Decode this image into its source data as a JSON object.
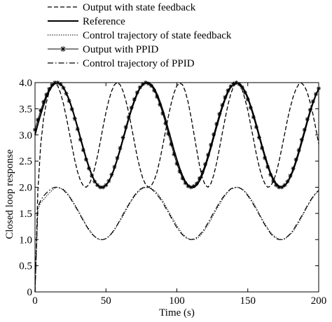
{
  "chart_data": {
    "type": "line",
    "xlabel": "Time (s)",
    "ylabel": "Closed loop response",
    "xlim": [
      0,
      200
    ],
    "ylim": [
      0,
      4.0
    ],
    "x_ticks": [
      "0",
      "50",
      "100",
      "150",
      "200"
    ],
    "y_ticks": [
      "0",
      "0.5",
      "1.0",
      "1.5",
      "2.0",
      "2.5",
      "3.0",
      "3.5",
      "4.0"
    ],
    "x_tick_values": [
      0,
      50,
      100,
      150,
      200
    ],
    "y_tick_values": [
      0,
      0.5,
      1.0,
      1.5,
      2.0,
      2.5,
      3.0,
      3.5,
      4.0
    ],
    "grid": false,
    "legend_position": "top-center",
    "x": [
      0,
      2,
      4,
      6,
      8,
      10,
      12,
      14,
      16,
      18,
      20,
      22,
      24,
      26,
      28,
      30,
      32,
      34,
      36,
      38,
      40,
      42,
      44,
      46,
      48,
      50,
      52,
      54,
      56,
      58,
      60,
      62,
      64,
      66,
      68,
      70,
      72,
      74,
      76,
      78,
      80,
      82,
      84,
      86,
      88,
      90,
      92,
      94,
      96,
      98,
      100,
      102,
      104,
      106,
      108,
      110,
      112,
      114,
      116,
      118,
      120,
      122,
      124,
      126,
      128,
      130,
      132,
      134,
      136,
      138,
      140,
      142,
      144,
      146,
      148,
      150,
      152,
      154,
      156,
      158,
      160,
      162,
      164,
      166,
      168,
      170,
      172,
      174,
      176,
      178,
      180,
      182,
      184,
      186,
      188,
      190,
      192,
      194,
      196,
      198,
      200
    ],
    "series": [
      {
        "name": "Output with state feedback",
        "style": "dashed",
        "values": [
          0,
          1.92,
          2.81,
          3.3,
          3.62,
          3.83,
          3.96,
          3.99,
          3.94,
          3.8,
          3.6,
          3.35,
          3.07,
          2.79,
          2.52,
          2.29,
          2.13,
          2.03,
          2.0,
          2.05,
          2.17,
          2.36,
          2.59,
          2.87,
          3.16,
          3.43,
          3.66,
          3.84,
          3.96,
          4.0,
          3.96,
          3.84,
          3.66,
          3.43,
          3.16,
          2.87,
          2.59,
          2.36,
          2.17,
          2.05,
          2.0,
          2.03,
          2.13,
          2.29,
          2.52,
          2.79,
          3.07,
          3.35,
          3.6,
          3.8,
          3.94,
          3.99,
          3.96,
          3.83,
          3.62,
          3.34,
          3.03,
          2.71,
          2.41,
          2.18,
          2.04,
          2.0,
          2.07,
          2.23,
          2.46,
          2.74,
          3.03,
          3.31,
          3.57,
          3.78,
          3.93,
          3.99,
          3.97,
          3.87,
          3.69,
          3.47,
          3.2,
          2.92,
          2.64,
          2.4,
          2.2,
          2.07,
          2.0,
          2.02,
          2.11,
          2.27,
          2.49,
          2.75,
          3.02,
          3.29,
          3.53,
          3.73,
          3.88,
          3.97,
          3.99,
          3.93,
          3.81,
          3.62,
          3.39,
          3.12,
          2.83
        ]
      },
      {
        "name": "Reference",
        "style": "solid",
        "values": [
          3.0,
          3.2,
          3.39,
          3.56,
          3.72,
          3.84,
          3.93,
          3.98,
          4.0,
          3.97,
          3.91,
          3.81,
          3.68,
          3.52,
          3.34,
          3.15,
          2.95,
          2.75,
          2.56,
          2.39,
          2.24,
          2.12,
          2.04,
          2.0,
          2.0,
          2.04,
          2.11,
          2.22,
          2.36,
          2.53,
          2.71,
          2.91,
          3.1,
          3.3,
          3.48,
          3.64,
          3.78,
          3.89,
          3.96,
          4.0,
          4.0,
          3.96,
          3.89,
          3.78,
          3.64,
          3.48,
          3.3,
          3.1,
          2.91,
          2.71,
          2.53,
          2.36,
          2.22,
          2.11,
          2.04,
          2.0,
          2.0,
          2.04,
          2.12,
          2.24,
          2.39,
          2.56,
          2.75,
          2.95,
          3.15,
          3.34,
          3.52,
          3.68,
          3.81,
          3.91,
          3.97,
          4.0,
          3.98,
          3.93,
          3.84,
          3.72,
          3.56,
          3.39,
          3.2,
          3.0,
          2.8,
          2.61,
          2.44,
          2.28,
          2.16,
          2.07,
          2.02,
          2.0,
          2.03,
          2.09,
          2.19,
          2.32,
          2.48,
          2.66,
          2.85,
          3.05,
          3.25,
          3.44,
          3.61,
          3.76,
          3.88
        ]
      },
      {
        "name": "Control trajectory of state feedback",
        "style": "dotted",
        "values": [
          0.0,
          1.57,
          1.71,
          1.76,
          1.83,
          1.89,
          1.94,
          1.98,
          2.0,
          1.98,
          1.96,
          1.91,
          1.84,
          1.76,
          1.67,
          1.58,
          1.48,
          1.38,
          1.28,
          1.2,
          1.12,
          1.06,
          1.02,
          1.0,
          1.0,
          1.02,
          1.06,
          1.11,
          1.18,
          1.27,
          1.36,
          1.45,
          1.55,
          1.65,
          1.74,
          1.82,
          1.89,
          1.94,
          1.98,
          2.0,
          2.0,
          1.98,
          1.94,
          1.89,
          1.82,
          1.74,
          1.65,
          1.55,
          1.45,
          1.36,
          1.27,
          1.18,
          1.11,
          1.06,
          1.02,
          1.0,
          1.0,
          1.02,
          1.06,
          1.12,
          1.2,
          1.28,
          1.38,
          1.48,
          1.58,
          1.67,
          1.76,
          1.84,
          1.91,
          1.96,
          1.98,
          2.0,
          1.99,
          1.97,
          1.92,
          1.86,
          1.78,
          1.7,
          1.6,
          1.5,
          1.4,
          1.3,
          1.22,
          1.14,
          1.08,
          1.04,
          1.01,
          1.0,
          1.01,
          1.05,
          1.1,
          1.16,
          1.24,
          1.33,
          1.43,
          1.53,
          1.63,
          1.72,
          1.81,
          1.88,
          1.94
        ]
      },
      {
        "name": "Output with PPID",
        "style": "solid-star",
        "values": [
          3.1,
          3.29,
          3.47,
          3.63,
          3.77,
          3.88,
          3.96,
          4.0,
          4.0,
          3.97,
          3.9,
          3.79,
          3.65,
          3.49,
          3.31,
          3.11,
          2.91,
          2.71,
          2.53,
          2.36,
          2.22,
          2.11,
          2.04,
          2.0,
          2.0,
          2.04,
          2.12,
          2.24,
          2.39,
          2.56,
          2.75,
          2.95,
          3.15,
          3.34,
          3.52,
          3.68,
          3.81,
          3.91,
          3.97,
          4.0,
          3.98,
          3.94,
          3.85,
          3.73,
          3.58,
          3.41,
          3.22,
          3.02,
          2.82,
          2.63,
          2.45,
          2.3,
          2.17,
          2.08,
          2.02,
          2.0,
          2.02,
          2.07,
          2.17,
          2.29,
          2.44,
          2.62,
          2.81,
          3.01,
          3.21,
          3.4,
          3.57,
          3.72,
          3.85,
          3.93,
          3.98,
          4.0,
          3.97,
          3.91,
          3.81,
          3.68,
          3.52,
          3.34,
          3.15,
          2.95,
          2.75,
          2.56,
          2.39,
          2.24,
          2.12,
          2.04,
          2.0,
          2.0,
          2.04,
          2.11,
          2.22,
          2.36,
          2.53,
          2.71,
          2.91,
          3.1,
          3.3,
          3.48,
          3.64,
          3.78,
          3.89
        ]
      },
      {
        "name": "Control trajectory of PPID",
        "style": "dashdot",
        "values": [
          0.0,
          1.62,
          1.75,
          1.83,
          1.89,
          1.94,
          1.98,
          2.0,
          2.0,
          1.98,
          1.95,
          1.89,
          1.83,
          1.74,
          1.65,
          1.56,
          1.46,
          1.36,
          1.27,
          1.18,
          1.11,
          1.06,
          1.02,
          1.0,
          1.0,
          1.02,
          1.06,
          1.12,
          1.2,
          1.28,
          1.38,
          1.48,
          1.58,
          1.67,
          1.76,
          1.84,
          1.91,
          1.96,
          1.99,
          2.0,
          1.99,
          1.97,
          1.92,
          1.86,
          1.79,
          1.71,
          1.61,
          1.52,
          1.42,
          1.32,
          1.23,
          1.15,
          1.09,
          1.04,
          1.01,
          1.0,
          1.01,
          1.04,
          1.09,
          1.15,
          1.23,
          1.32,
          1.42,
          1.52,
          1.61,
          1.71,
          1.79,
          1.86,
          1.92,
          1.97,
          1.99,
          2.0,
          1.99,
          1.96,
          1.91,
          1.84,
          1.76,
          1.67,
          1.58,
          1.48,
          1.38,
          1.28,
          1.2,
          1.12,
          1.06,
          1.02,
          1.0,
          1.0,
          1.02,
          1.06,
          1.11,
          1.18,
          1.27,
          1.36,
          1.45,
          1.55,
          1.65,
          1.74,
          1.82,
          1.89,
          1.94
        ]
      }
    ]
  }
}
